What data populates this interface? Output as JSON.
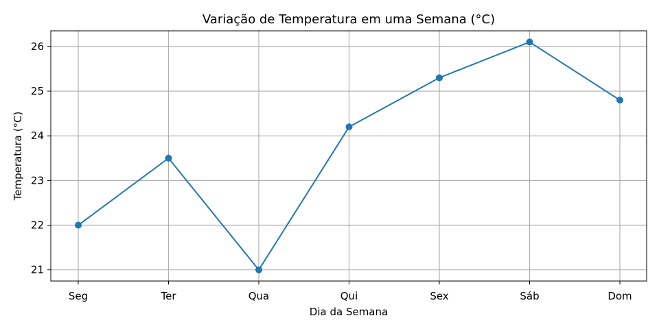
{
  "chart_data": {
    "type": "line",
    "title": "Variação de Temperatura em uma Semana (°C)",
    "xlabel": "Dia da Semana",
    "ylabel": "Temperatura (°C)",
    "categories": [
      "Seg",
      "Ter",
      "Qua",
      "Qui",
      "Sex",
      "Sáb",
      "Dom"
    ],
    "values": [
      22.0,
      23.5,
      21.0,
      24.2,
      25.3,
      26.1,
      24.8
    ],
    "yticks": [
      21,
      22,
      23,
      24,
      25,
      26
    ],
    "ylim": [
      20.75,
      26.35
    ],
    "grid": true,
    "marker": "circle",
    "color": "#1f77b4"
  }
}
